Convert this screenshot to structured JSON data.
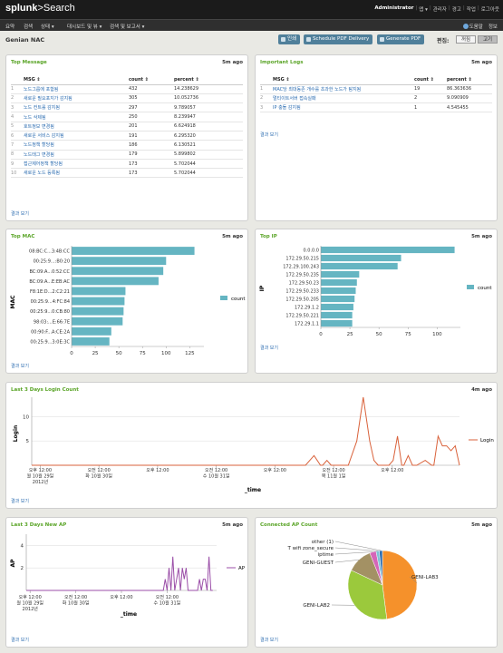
{
  "app": {
    "logo_main": "splunk",
    "logo_sub": ">Search"
  },
  "top_links": [
    "Administrator",
    "앱 ▾",
    "관리자",
    "경고",
    "작업",
    "로그아웃"
  ],
  "nav": {
    "items": [
      "요약",
      "검색",
      "상태 ▾",
      "대시보드 및 뷰 ▾",
      "검색 및 보고서 ▾"
    ],
    "help": "도움말",
    "about": "정보"
  },
  "dashboard": {
    "title": "Genian NAC",
    "print": "인쇄",
    "schedule": "Schedule PDF Delivery",
    "generate": "Generate PDF",
    "edit_label": "편집:",
    "off": "꺼짐",
    "on": "고기"
  },
  "panels": {
    "top_message": {
      "title": "Top Message",
      "ago": "5m ago",
      "link": "결과 보기",
      "headers": [
        "MSG ⇕",
        "count ⇕",
        "percent ⇕"
      ],
      "rows": [
        [
          "1",
          "노드그룹에 포함됨",
          "432",
          "14.238629"
        ],
        [
          "2",
          "새로운 필요포지가 감지됨",
          "305",
          "10.052736"
        ],
        [
          "3",
          "노드 컨트롤 감지됨",
          "297",
          "9.789057"
        ],
        [
          "4",
          "노드 삭제됨",
          "250",
          "8.239947"
        ],
        [
          "5",
          "호트정보 변경됨",
          "201",
          "6.624918"
        ],
        [
          "6",
          "새로운 서비스 감지됨",
          "191",
          "6.295320"
        ],
        [
          "7",
          "노드정책 할당됨",
          "186",
          "6.130521"
        ],
        [
          "8",
          "노드태그 변경됨",
          "179",
          "5.899802"
        ],
        [
          "9",
          "접근제어정책 할당됨",
          "173",
          "5.702044"
        ],
        [
          "10",
          "새로운 노드 등록됨",
          "173",
          "5.702044"
        ]
      ]
    },
    "important_logs": {
      "title": "Important Logs",
      "ago": "5m ago",
      "link": "결과 보기",
      "headers": [
        "MSG ⇕",
        "count ⇕",
        "percent ⇕"
      ],
      "rows": [
        [
          "1",
          "MAC당 최대동존 개수를 초과한 노드가 탐지됨",
          "19",
          "86.363636"
        ],
        [
          "2",
          "멀티이트서버 접속실패",
          "2",
          "9.090909"
        ],
        [
          "3",
          "IP 충돌 감지됨",
          "1",
          "4.545455"
        ]
      ]
    },
    "top_mac": {
      "title": "Top MAC",
      "ago": "5m ago",
      "link": "결과 보기",
      "axis_label": "MAC",
      "legend": "count"
    },
    "top_ip": {
      "title": "Top IP",
      "ago": "5m ago",
      "link": "결과 보기",
      "axis_label": "IP",
      "legend": "count"
    },
    "login_count": {
      "title": "Last 3 Days Login Count",
      "ago": "4m ago",
      "link": "결과 보기",
      "ylabel": "Login",
      "xlabel": "_time",
      "legend": "Login"
    },
    "new_ap": {
      "title": "Last 3 Days New AP",
      "ago": "5m ago",
      "link": "결과 보기",
      "ylabel": "AP",
      "xlabel": "_time",
      "legend": "AP"
    },
    "connected_ap": {
      "title": "Connected AP Count",
      "ago": "5m ago",
      "link": "결과 보기"
    }
  },
  "chart_data": [
    {
      "type": "bar",
      "orientation": "horizontal",
      "name": "Top MAC",
      "categories": [
        "08:BC:C...3:4B:CC",
        "00:25:9...:B0:20",
        "BC:09:A...0:52:CC",
        "BC:09:A...E:EB:AC",
        "F8:1E:D...2:C2:21",
        "00:25:9...4:FC:84",
        "00:25:9...0:CB:80",
        "98:03:...E:66:7E",
        "00:90:F...A:CE:2A",
        "00:25:9...3:0E:3C"
      ],
      "series": [
        {
          "name": "count",
          "values": [
            130,
            100,
            97,
            92,
            57,
            56,
            55,
            54,
            42,
            40
          ]
        }
      ],
      "xticks": [
        0,
        25,
        50,
        75,
        100,
        125
      ],
      "xlim": [
        0,
        140
      ],
      "color": "#65b5c2"
    },
    {
      "type": "bar",
      "orientation": "horizontal",
      "name": "Top IP",
      "categories": [
        "0.0.0.0",
        "172.29.50.215",
        "172.29.100.243",
        "172.29.50.235",
        "172.29.50.23",
        "172.29.50.233",
        "172.29.50.205",
        "172.29.1.2",
        "172.29.50.221",
        "172.29.1.1"
      ],
      "series": [
        {
          "name": "count",
          "values": [
            115,
            69,
            66,
            33,
            31,
            30,
            29,
            28,
            27,
            27
          ]
        }
      ],
      "xticks": [
        0,
        25,
        50,
        75,
        100
      ],
      "xlim": [
        0,
        120
      ],
      "color": "#65b5c2"
    },
    {
      "type": "line",
      "name": "Last 3 Days Login Count",
      "x_tick_labels": [
        [
          "오후 12:00",
          "월 10월 29일",
          "2012년"
        ],
        [
          "오전 12:00",
          "화 10월 30일"
        ],
        [
          "오후 12:00"
        ],
        [
          "오전 12:00",
          "수 10월 31일"
        ],
        [
          "오후 12:00"
        ],
        [
          "오전 12:00",
          "목 11월 1일"
        ],
        [
          "오후 12:00"
        ]
      ],
      "yticks": [
        5,
        10
      ],
      "ylim": [
        0,
        14
      ],
      "series": [
        {
          "name": "Login",
          "color": "#d9623b",
          "points": [
            [
              0.0,
              0
            ],
            [
              0.64,
              0
            ],
            [
              0.66,
              2
            ],
            [
              0.675,
              0
            ],
            [
              0.68,
              0
            ],
            [
              0.69,
              1
            ],
            [
              0.7,
              0
            ],
            [
              0.74,
              0
            ],
            [
              0.76,
              5
            ],
            [
              0.775,
              14
            ],
            [
              0.79,
              5
            ],
            [
              0.8,
              1
            ],
            [
              0.81,
              0
            ],
            [
              0.835,
              0
            ],
            [
              0.845,
              1
            ],
            [
              0.855,
              6
            ],
            [
              0.865,
              0
            ],
            [
              0.87,
              0
            ],
            [
              0.88,
              2
            ],
            [
              0.89,
              0
            ],
            [
              0.9,
              0
            ],
            [
              0.92,
              1
            ],
            [
              0.935,
              0
            ],
            [
              0.94,
              0
            ],
            [
              0.95,
              6
            ],
            [
              0.96,
              4
            ],
            [
              0.97,
              4
            ],
            [
              0.98,
              3
            ],
            [
              0.99,
              4
            ],
            [
              1.0,
              0
            ]
          ]
        }
      ]
    },
    {
      "type": "line",
      "name": "Last 3 Days New AP",
      "x_tick_labels": [
        [
          "오후 12:00",
          "월 10월 29일",
          "2012년"
        ],
        [
          "오전 12:00",
          "화 10월 30일"
        ],
        [
          "오후 12:00"
        ],
        [
          "오전 12:00",
          "수 10월 31일"
        ]
      ],
      "yticks": [
        2,
        4
      ],
      "ylim": [
        0,
        5
      ],
      "series": [
        {
          "name": "AP",
          "color": "#9b4fa8",
          "points": [
            [
              0.0,
              0
            ],
            [
              0.72,
              0
            ],
            [
              0.73,
              1
            ],
            [
              0.74,
              0
            ],
            [
              0.75,
              2
            ],
            [
              0.76,
              0
            ],
            [
              0.77,
              3
            ],
            [
              0.78,
              0
            ],
            [
              0.79,
              1
            ],
            [
              0.8,
              2
            ],
            [
              0.81,
              0
            ],
            [
              0.82,
              2
            ],
            [
              0.83,
              1
            ],
            [
              0.84,
              2
            ],
            [
              0.85,
              0
            ],
            [
              0.9,
              0
            ],
            [
              0.91,
              1
            ],
            [
              0.92,
              0
            ],
            [
              0.93,
              1
            ],
            [
              0.94,
              1
            ],
            [
              0.95,
              0
            ],
            [
              0.96,
              3
            ],
            [
              0.97,
              0
            ],
            [
              0.98,
              0
            ]
          ]
        }
      ]
    },
    {
      "type": "pie",
      "name": "Connected AP Count",
      "slices": [
        {
          "label": "GENI-LAB3",
          "value": 48,
          "color": "#f5912b"
        },
        {
          "label": "GENI-LAB2",
          "value": 34,
          "color": "#9bc93c"
        },
        {
          "label": "GENI-GUEST",
          "value": 12,
          "color": "#a39164"
        },
        {
          "label": "iptime",
          "value": 3,
          "color": "#d565b8"
        },
        {
          "label": "T wifi zone_secure",
          "value": 1.5,
          "color": "#7cc2d6"
        },
        {
          "label": "other (1)",
          "value": 1.5,
          "color": "#2f6fb0"
        }
      ]
    }
  ]
}
